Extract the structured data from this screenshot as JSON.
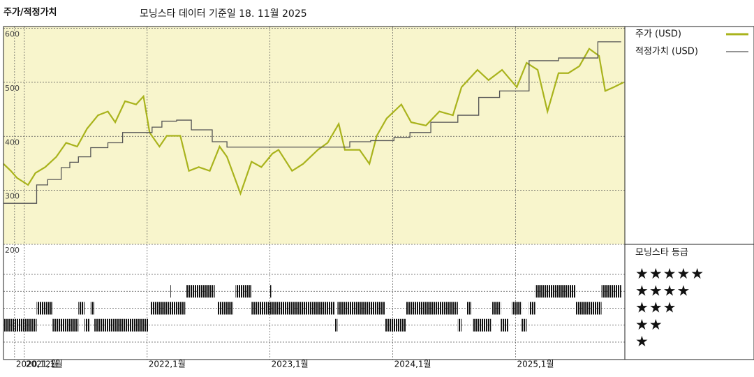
{
  "chart_data": [
    {
      "type": "line",
      "title": "주가/적정가치",
      "subtitle": "모닝스타 데이터 기준일 18. 11월 2025",
      "background": "#f8f5cc",
      "grid": true,
      "xlim": [
        2020.83,
        2025.89
      ],
      "xticks": [
        {
          "value": 2020.92,
          "label": "2020,12월"
        },
        {
          "value": 2021,
          "label": "2021,1월"
        },
        {
          "value": 2022,
          "label": "2022,1월"
        },
        {
          "value": 2023,
          "label": "2023,1월"
        },
        {
          "value": 2024,
          "label": "2024,1월"
        },
        {
          "value": 2025,
          "label": "2025,1월"
        }
      ],
      "ylim": [
        200,
        600
      ],
      "yticks": [
        200,
        300,
        400,
        500,
        600
      ],
      "series": [
        {
          "name": "주가 (USD)",
          "color": "#a9b31c",
          "x": [
            2020.83,
            2020.89,
            2020.94,
            2021.03,
            2021.09,
            2021.17,
            2021.26,
            2021.34,
            2021.43,
            2021.51,
            2021.6,
            2021.68,
            2021.74,
            2021.82,
            2021.91,
            2021.97,
            2022.02,
            2022.1,
            2022.16,
            2022.27,
            2022.34,
            2022.42,
            2022.51,
            2022.59,
            2022.65,
            2022.76,
            2022.85,
            2022.93,
            2023.02,
            2023.07,
            2023.18,
            2023.27,
            2023.39,
            2023.47,
            2023.56,
            2023.61,
            2023.73,
            2023.81,
            2023.87,
            2023.95,
            2024.07,
            2024.15,
            2024.27,
            2024.38,
            2024.49,
            2024.56,
            2024.69,
            2024.78,
            2024.89,
            2025.01,
            2025.09,
            2025.18,
            2025.26,
            2025.35,
            2025.43,
            2025.52,
            2025.6,
            2025.68,
            2025.73,
            2025.8,
            2025.88
          ],
          "values": [
            349,
            336,
            323,
            310,
            332,
            343,
            362,
            388,
            381,
            414,
            439,
            446,
            426,
            465,
            459,
            474,
            407,
            381,
            401,
            401,
            336,
            343,
            336,
            381,
            362,
            294,
            353,
            343,
            368,
            375,
            336,
            349,
            375,
            388,
            423,
            375,
            375,
            349,
            401,
            433,
            459,
            426,
            420,
            446,
            439,
            491,
            523,
            504,
            523,
            491,
            536,
            523,
            446,
            517,
            517,
            530,
            562,
            549,
            484,
            491,
            500
          ]
        },
        {
          "name": "적정가치 (USD)",
          "color": "#555555",
          "step": true,
          "x": [
            2020.83,
            2021.1,
            2021.19,
            2021.3,
            2021.37,
            2021.44,
            2021.54,
            2021.68,
            2021.8,
            2022.04,
            2022.12,
            2022.24,
            2022.36,
            2022.53,
            2022.65,
            2023.57,
            2023.65,
            2023.82,
            2024.01,
            2024.14,
            2024.31,
            2024.53,
            2024.7,
            2024.87,
            2025.11,
            2025.35,
            2025.67,
            2025.86
          ],
          "values": [
            276,
            310,
            320,
            342,
            352,
            362,
            379,
            388,
            407,
            417,
            428,
            430,
            412,
            390,
            380,
            380,
            390,
            392,
            398,
            407,
            426,
            439,
            472,
            484,
            540,
            545,
            575,
            575
          ]
        }
      ]
    },
    {
      "type": "rating",
      "title": "모닝스타 등급",
      "color": "#111111",
      "ylim": [
        1,
        5
      ],
      "yticks": [
        {
          "value": 5,
          "label": "★★★★★"
        },
        {
          "value": 4,
          "label": "★★★★"
        },
        {
          "value": 3,
          "label": "★★★"
        },
        {
          "value": 2,
          "label": "★★"
        },
        {
          "value": 1,
          "label": "★"
        }
      ],
      "x_start": [
        2020.83,
        2021.1,
        2021.23,
        2021.44,
        2021.49,
        2021.54,
        2021.57,
        2022.03,
        2022.19,
        2022.32,
        2022.57,
        2022.72,
        2022.85,
        2023.0,
        2023.53,
        2023.55,
        2023.94,
        2024.11,
        2024.53,
        2024.6,
        2024.65,
        2024.81,
        2024.88,
        2024.97,
        2025.05,
        2025.11,
        2025.16,
        2025.49,
        2025.7
      ],
      "x_end": [
        2021.1,
        2021.23,
        2021.44,
        2021.49,
        2021.53,
        2021.57,
        2022.01,
        2022.31,
        2022.2,
        2022.55,
        2022.7,
        2022.85,
        2023.53,
        2023.01,
        2023.55,
        2023.94,
        2024.11,
        2024.53,
        2024.56,
        2024.64,
        2024.8,
        2024.88,
        2024.94,
        2025.05,
        2025.09,
        2025.16,
        2025.49,
        2025.7,
        2025.86
      ],
      "values": [
        2,
        3,
        2,
        3,
        2,
        3,
        2,
        3,
        4,
        4,
        3,
        4,
        3,
        4,
        2,
        3,
        2,
        3,
        2,
        3,
        2,
        3,
        2,
        3,
        2,
        3,
        4,
        3,
        4
      ]
    }
  ]
}
